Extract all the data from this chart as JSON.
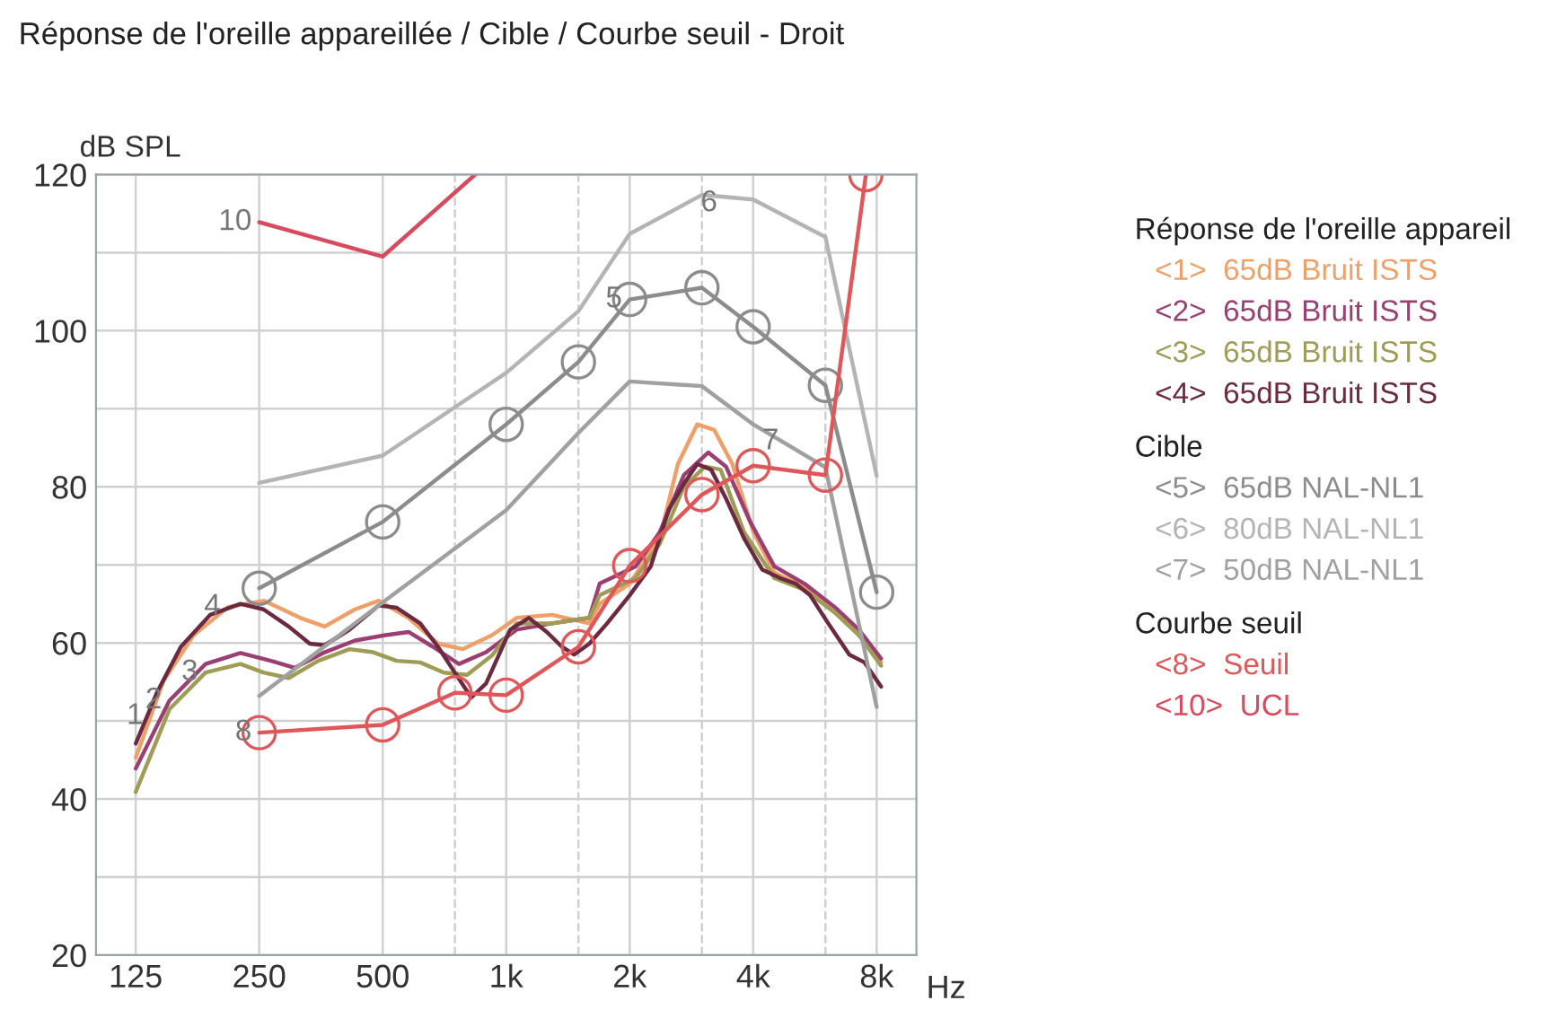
{
  "chart_data": {
    "type": "line",
    "title": "Réponse de l'oreille appareillée / Cible / Courbe seuil - Droit",
    "xlabel": "Hz",
    "ylabel": "dB SPL",
    "legend_title": "Réponse de l'oreille appareil",
    "log": "x",
    "xlim": [
      100,
      10000
    ],
    "xticks": [
      125,
      250,
      500,
      {
        "value": 750,
        "label": null
      },
      {
        "value": 1000,
        "label": "1k"
      },
      {
        "value": 1500,
        "label": null
      },
      {
        "value": 2000,
        "label": "2k"
      },
      {
        "value": 3000,
        "label": null
      },
      {
        "value": 4000,
        "label": "4k"
      },
      {
        "value": 6000,
        "label": null
      },
      {
        "value": 8000,
        "label": "8k"
      }
    ],
    "ylim": [
      20,
      120
    ],
    "yticks": [
      20,
      {
        "value": 30,
        "label": null
      },
      40,
      {
        "value": 50,
        "label": null
      },
      60,
      {
        "value": 70,
        "label": null
      },
      80,
      {
        "value": 90,
        "label": null
      },
      100,
      {
        "value": 110,
        "label": null
      },
      120
    ],
    "grid": true,
    "legend": "right",
    "series": [
      {
        "name": "<1>  65dB Bruit ISTS",
        "color": "#eea068",
        "marker": "none",
        "x": [
          125,
          146,
          173,
          210,
          257,
          315,
          361,
          428,
          489,
          578,
          682,
          784,
          924,
          1060,
          1294,
          1594,
          1690,
          2000,
          2368,
          2621,
          2921,
          3213,
          3560,
          4004,
          4506,
          5331,
          6320,
          7238,
          8200
        ],
        "values": [
          45.3,
          55.1,
          61,
          64.6,
          65.4,
          63.2,
          62.1,
          64.3,
          65.4,
          63.2,
          59.9,
          59.2,
          61,
          63.2,
          63.6,
          62.5,
          65,
          67.6,
          73.4,
          82.9,
          88,
          87.3,
          82.9,
          74.2,
          69,
          67.2,
          63.9,
          61,
          57.5
        ]
      },
      {
        "name": "<2>  65dB Bruit ISTS",
        "color": "#9b3f72",
        "marker": "none",
        "x": [
          125,
          151,
          185,
          225,
          267,
          305,
          361,
          428,
          508,
          578,
          663,
          767,
          893,
          1060,
          1294,
          1594,
          1690,
          2068,
          2368,
          2712,
          3108,
          3434,
          3927,
          4506,
          5331,
          6320,
          7238,
          8200
        ],
        "values": [
          43.9,
          52.6,
          57.3,
          58.7,
          57.7,
          56.8,
          58.8,
          60.3,
          61,
          61.4,
          59.5,
          57.3,
          58.8,
          61.7,
          62.5,
          63.2,
          67.6,
          69.8,
          74.2,
          81.5,
          84.4,
          82.6,
          75.6,
          69.8,
          67.6,
          64.6,
          61.7,
          58
        ]
      },
      {
        "name": "<3>  65dB Bruit ISTS",
        "color": "#9f9c55",
        "marker": "none",
        "x": [
          125,
          151,
          185,
          225,
          256,
          295,
          348,
          415,
          474,
          541,
          617,
          705,
          803,
          924,
          1060,
          1294,
          1594,
          1690,
          2068,
          2368,
          2712,
          3054,
          3332,
          3800,
          4506,
          5331,
          6320,
          7238,
          8200
        ],
        "values": [
          40.9,
          51.5,
          56.2,
          57.3,
          56.2,
          55.5,
          57.7,
          59.2,
          58.8,
          57.7,
          57.5,
          56.2,
          55.9,
          58.4,
          62.5,
          62.5,
          63.2,
          66.1,
          68.3,
          72.7,
          80,
          82.6,
          82.2,
          74.2,
          68.3,
          66.8,
          63.9,
          61,
          57.1
        ]
      },
      {
        "name": "<4>  65dB Bruit ISTS",
        "color": "#6b2a40",
        "marker": "none",
        "x": [
          125,
          141,
          161,
          190,
          225,
          256,
          295,
          332,
          361,
          415,
          489,
          541,
          617,
          682,
          756,
          822,
          893,
          1023,
          1135,
          1256,
          1367,
          1464,
          1595,
          1762,
          2000,
          2251,
          2491,
          2712,
          2921,
          3159,
          3434,
          3800,
          4208,
          4659,
          5070,
          5506,
          6096,
          6863,
          7474,
          8200
        ],
        "values": [
          47.1,
          53.7,
          59.5,
          63.6,
          65,
          64.3,
          62.1,
          59.9,
          59.7,
          61.7,
          64.8,
          64.5,
          62.5,
          59.5,
          55.9,
          53,
          54.8,
          61.7,
          63.2,
          61.4,
          59.5,
          58.5,
          59.9,
          62.5,
          66.1,
          69.8,
          77.1,
          80.4,
          82.9,
          82.2,
          78.5,
          73.4,
          69.4,
          68.3,
          67.6,
          66.1,
          62.5,
          58.5,
          57.5,
          54.4
        ]
      },
      {
        "name": "<5>  65dB NAL-NL1",
        "color": "#8c8c8c",
        "marker": "circle",
        "x": [
          250,
          500,
          1000,
          1500,
          2000,
          3000,
          4000,
          6000,
          8000
        ],
        "values": [
          67,
          75.5,
          88,
          96,
          104,
          105.5,
          100.5,
          93,
          66.5
        ]
      },
      {
        "name": "<6>  80dB NAL-NL1",
        "color": "#b4b4b4",
        "marker": "none",
        "x": [
          250,
          500,
          1000,
          1500,
          2000,
          3000,
          4000,
          6000,
          8000
        ],
        "values": [
          80.5,
          84,
          94.6,
          102.5,
          112.4,
          117.4,
          116.8,
          112,
          81.4
        ]
      },
      {
        "name": "<7>  50dB NAL-NL1",
        "color": "#a0a0a0",
        "marker": "none",
        "x": [
          250,
          500,
          1000,
          1500,
          2000,
          3000,
          4000,
          6000,
          8000
        ],
        "values": [
          53.2,
          65.2,
          77,
          86.9,
          93.5,
          92.9,
          88,
          82.5,
          51.8
        ]
      },
      {
        "name": "<8>  Seuil",
        "color": "#e0575a",
        "marker": "circle",
        "x": [
          250,
          500,
          750,
          1000,
          1500,
          2000,
          3000,
          4000,
          6000,
          7530
        ],
        "values": [
          48.5,
          49.5,
          53.6,
          53.3,
          59.5,
          69.9,
          79,
          82.7,
          81.5,
          120
        ]
      },
      {
        "name": "<10>  UCL",
        "color": "#d84a5e",
        "marker": "none",
        "x": [
          250,
          500,
          840
        ],
        "values": [
          113.9,
          109.5,
          120
        ]
      }
    ],
    "annotations": [
      "Cible",
      "Courbe seuil",
      {
        "text": "1",
        "x": 136,
        "y": 50.6
      },
      {
        "text": "2",
        "x": 151,
        "y": 52.6
      },
      {
        "text": "3",
        "x": 185,
        "y": 56.2
      },
      {
        "text": "4",
        "x": 210,
        "y": 64.6
      },
      {
        "text": "5",
        "x": 2000,
        "y": 104
      },
      {
        "text": "6",
        "x": 3413,
        "y": 116.3
      },
      {
        "text": "7",
        "x": 4819,
        "y": 85.8
      },
      {
        "text": "8",
        "x": 250,
        "y": 48.5
      },
      {
        "text": "10",
        "x": 250,
        "y": 113.9
      }
    ]
  }
}
